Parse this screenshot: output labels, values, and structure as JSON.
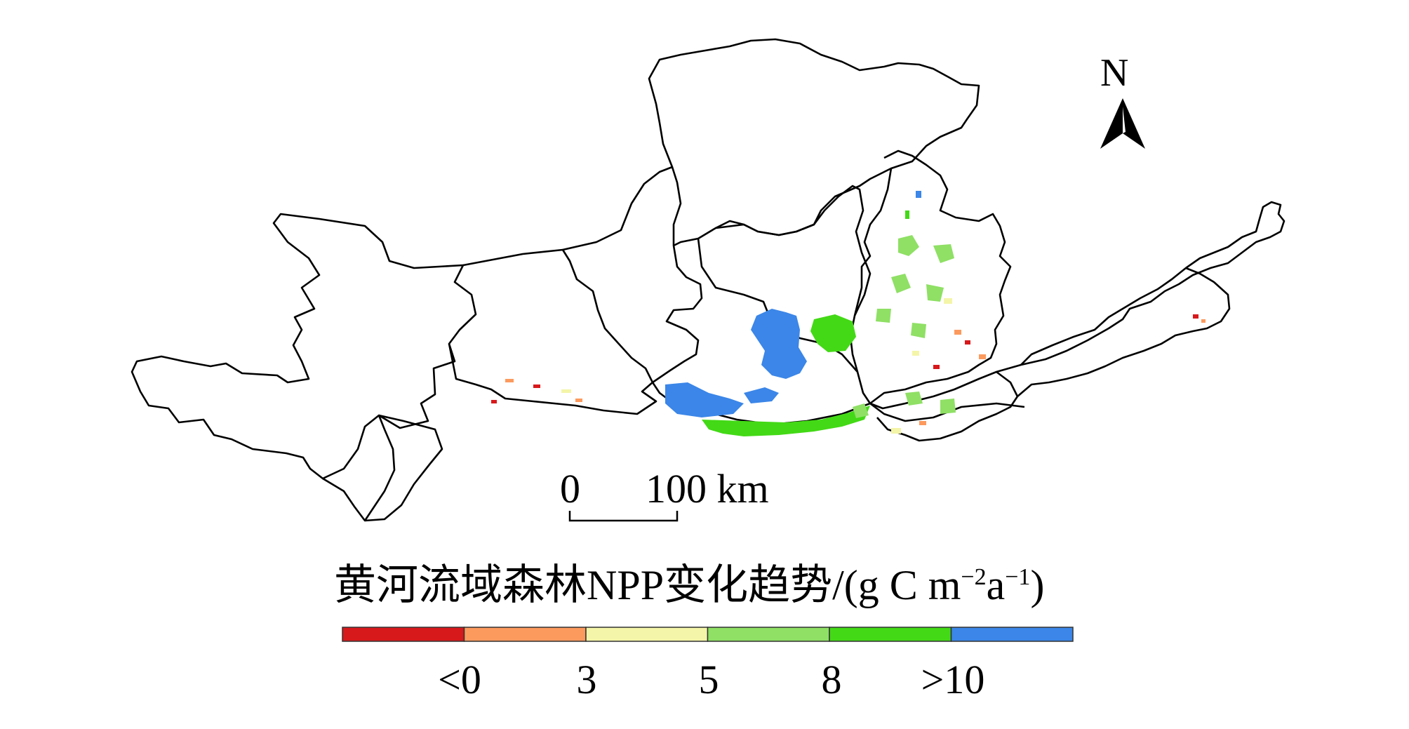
{
  "north_arrow": {
    "label": "N"
  },
  "scale_bar": {
    "start": "0",
    "end": "100 km"
  },
  "legend": {
    "title": "黄河流域森林NPP变化趋势/(g C m",
    "unit_sup1": "−2",
    "unit_mid": "a",
    "unit_sup2": "−1",
    "unit_end": ")",
    "classes": [
      {
        "color": "#d7191c"
      },
      {
        "color": "#fc9a5e"
      },
      {
        "color": "#f4f5a8"
      },
      {
        "color": "#8fe065"
      },
      {
        "color": "#43d916"
      },
      {
        "color": "#3b86e8"
      }
    ],
    "ticks": [
      "<0",
      "3",
      "5",
      "8",
      ">10"
    ]
  }
}
